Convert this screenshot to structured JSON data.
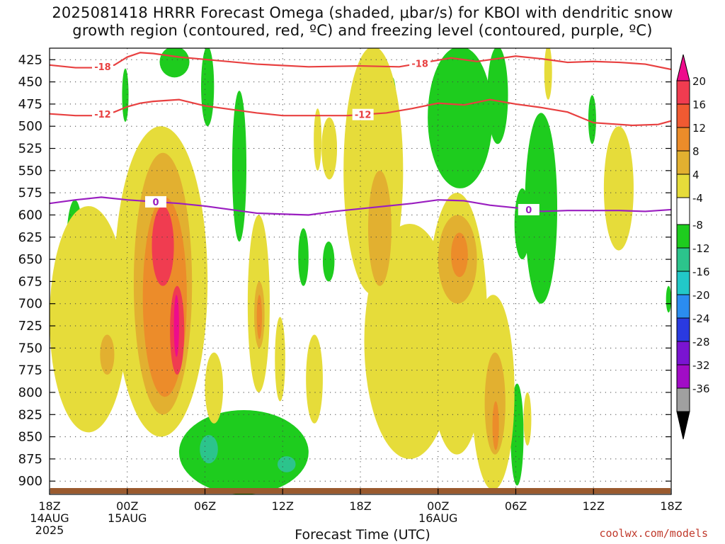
{
  "title": {
    "line1": "2025081418 HRRR Forecast Omega (shaded, μbar/s) for KBOI with dendritic snow",
    "line2": "growth region (contoured, red, ºC) and freezing level (contoured, purple, ºC)"
  },
  "credit": "coolwx.com/models",
  "xlabel": "Forecast Time (UTC)",
  "chart_data": {
    "type": "heatmap",
    "title": "2025081418 HRRR Forecast Omega (shaded, μbar/s) for KBOI with dendritic snow growth region (contoured, red, ºC) and freezing level (contoured, purple, ºC)",
    "xlabel": "Forecast Time (UTC)",
    "ylabel": "",
    "x_range_hours": [
      0,
      48
    ],
    "y_range_hpa": [
      412,
      915
    ],
    "y_ticks": [
      425,
      450,
      475,
      500,
      525,
      550,
      575,
      600,
      625,
      650,
      675,
      700,
      725,
      750,
      775,
      800,
      825,
      850,
      875,
      900
    ],
    "x_ticks": [
      {
        "hour": 0,
        "lines": [
          "18Z",
          "14AUG",
          "2025"
        ]
      },
      {
        "hour": 6,
        "lines": [
          "00Z",
          "15AUG"
        ]
      },
      {
        "hour": 12,
        "lines": [
          "06Z"
        ]
      },
      {
        "hour": 18,
        "lines": [
          "12Z"
        ]
      },
      {
        "hour": 24,
        "lines": [
          "18Z"
        ]
      },
      {
        "hour": 30,
        "lines": [
          "00Z",
          "16AUG"
        ]
      },
      {
        "hour": 36,
        "lines": [
          "06Z"
        ]
      },
      {
        "hour": 42,
        "lines": [
          "12Z"
        ]
      },
      {
        "hour": 48,
        "lines": [
          "18Z"
        ]
      }
    ],
    "grid": true,
    "colorbar": {
      "labels": [
        "20",
        "16",
        "12",
        "8",
        "4",
        "-4",
        "-8",
        "-12",
        "-16",
        "-20",
        "-24",
        "-28",
        "-32",
        "-36"
      ],
      "bins": [
        {
          "range": [
            16,
            20
          ],
          "color": "#f03c50"
        },
        {
          "range": [
            12,
            16
          ],
          "color": "#f05a32"
        },
        {
          "range": [
            8,
            12
          ],
          "color": "#ec8c2a"
        },
        {
          "range": [
            4,
            8
          ],
          "color": "#e2b030"
        },
        {
          "range": [
            0,
            4
          ],
          "color": "#e6dc3a"
        },
        {
          "range": [
            -4,
            4
          ],
          "color": "#ffffff"
        },
        {
          "range": [
            -8,
            -4
          ],
          "color": "#1ecc1e"
        },
        {
          "range": [
            -12,
            -8
          ],
          "color": "#2cc48c"
        },
        {
          "range": [
            -16,
            -12
          ],
          "color": "#22c8c8"
        },
        {
          "range": [
            -20,
            -16
          ],
          "color": "#2b8cf0"
        },
        {
          "range": [
            -24,
            -20
          ],
          "color": "#2a3ae0"
        },
        {
          "range": [
            -28,
            -24
          ],
          "color": "#7a14d2"
        },
        {
          "range": [
            -32,
            -28
          ],
          "color": "#a10cc6"
        },
        {
          "range": [
            -36,
            -32
          ],
          "color": "#a0a0a0"
        }
      ],
      "top_cap_color": "#ee0c8c",
      "bottom_cap_color": "#000000"
    },
    "contours": {
      "dendritic_minus18": {
        "label": "-18",
        "color": "#e84040",
        "points": [
          [
            0,
            431
          ],
          [
            2,
            434
          ],
          [
            3.3,
            434
          ],
          [
            5,
            431
          ],
          [
            6,
            422
          ],
          [
            7,
            417
          ],
          [
            8,
            418
          ],
          [
            10,
            422
          ],
          [
            13,
            426
          ],
          [
            16,
            430
          ],
          [
            20,
            433
          ],
          [
            24,
            432
          ],
          [
            27,
            433
          ],
          [
            29,
            428
          ],
          [
            31,
            423
          ],
          [
            33,
            427
          ],
          [
            36,
            421
          ],
          [
            38,
            424
          ],
          [
            40,
            428
          ],
          [
            42,
            427
          ],
          [
            44,
            428
          ],
          [
            46,
            430
          ],
          [
            48,
            436
          ]
        ]
      },
      "dendritic_minus12": {
        "label": "-12",
        "color": "#e84040",
        "points": [
          [
            0,
            486
          ],
          [
            2,
            488
          ],
          [
            3.3,
            488
          ],
          [
            5,
            484
          ],
          [
            6,
            478
          ],
          [
            7,
            474
          ],
          [
            8,
            472
          ],
          [
            10,
            470
          ],
          [
            12,
            477
          ],
          [
            14,
            481
          ],
          [
            16,
            485
          ],
          [
            18,
            488
          ],
          [
            21,
            488
          ],
          [
            23,
            488
          ],
          [
            26,
            485
          ],
          [
            28,
            480
          ],
          [
            30,
            474
          ],
          [
            32,
            476
          ],
          [
            34,
            470
          ],
          [
            36,
            475
          ],
          [
            38,
            479
          ],
          [
            40,
            484
          ],
          [
            42,
            496
          ],
          [
            45,
            499
          ],
          [
            47,
            498
          ],
          [
            48,
            494
          ]
        ]
      },
      "freezing_level": {
        "label": "0",
        "color": "#9a1ec0",
        "points": [
          [
            0,
            587
          ],
          [
            2,
            583
          ],
          [
            4,
            580
          ],
          [
            6,
            583
          ],
          [
            8,
            585
          ],
          [
            10,
            587
          ],
          [
            12,
            590
          ],
          [
            14,
            594
          ],
          [
            16,
            598
          ],
          [
            18,
            599
          ],
          [
            20,
            600
          ],
          [
            22,
            596
          ],
          [
            24,
            593
          ],
          [
            26,
            590
          ],
          [
            28,
            587
          ],
          [
            30,
            583
          ],
          [
            32,
            584
          ],
          [
            34,
            589
          ],
          [
            36,
            592
          ],
          [
            38,
            596
          ],
          [
            40,
            595
          ],
          [
            42,
            595
          ],
          [
            44,
            595
          ],
          [
            46,
            596
          ],
          [
            48,
            594
          ]
        ]
      }
    },
    "surface_color": "#9a5a2e",
    "omega_regions": [
      {
        "x0": 1.3,
        "x1": 2.6,
        "y0": 583,
        "y1": 687,
        "value": -6,
        "color": "#1ecc1e"
      },
      {
        "x0": 5.6,
        "x1": 6.1,
        "y0": 435,
        "y1": 495,
        "value": -6,
        "color": "#1ecc1e"
      },
      {
        "x0": 8.5,
        "x1": 10.8,
        "y0": 410,
        "y1": 445,
        "value": -6,
        "color": "#1ecc1e"
      },
      {
        "x0": 11.7,
        "x1": 12.7,
        "y0": 410,
        "y1": 500,
        "value": -6,
        "color": "#1ecc1e"
      },
      {
        "x0": 14.1,
        "x1": 15.2,
        "y0": 460,
        "y1": 630,
        "value": -6,
        "color": "#1ecc1e"
      },
      {
        "x0": 19.2,
        "x1": 20.0,
        "y0": 615,
        "y1": 680,
        "value": -6,
        "color": "#1ecc1e"
      },
      {
        "x0": 21.1,
        "x1": 22.0,
        "y0": 630,
        "y1": 675,
        "value": -6,
        "color": "#1ecc1e"
      },
      {
        "x0": 26.1,
        "x1": 26.9,
        "y0": 445,
        "y1": 590,
        "value": -6,
        "color": "#1ecc1e"
      },
      {
        "x0": 29.2,
        "x1": 34.2,
        "y0": 410,
        "y1": 570,
        "value": -6,
        "color": "#1ecc1e"
      },
      {
        "x0": 33.8,
        "x1": 35.4,
        "y0": 410,
        "y1": 520,
        "value": -6,
        "color": "#1ecc1e"
      },
      {
        "x0": 35.9,
        "x1": 37.1,
        "y0": 570,
        "y1": 650,
        "value": -6,
        "color": "#1ecc1e"
      },
      {
        "x0": 36.7,
        "x1": 39.2,
        "y0": 485,
        "y1": 700,
        "value": -6,
        "color": "#1ecc1e"
      },
      {
        "x0": 41.6,
        "x1": 42.2,
        "y0": 465,
        "y1": 520,
        "value": -6,
        "color": "#1ecc1e"
      },
      {
        "x0": 47.6,
        "x1": 48.0,
        "y0": 680,
        "y1": 710,
        "value": -6,
        "color": "#1ecc1e"
      },
      {
        "x0": 35.6,
        "x1": 36.6,
        "y0": 790,
        "y1": 905,
        "value": -6,
        "color": "#1ecc1e"
      },
      {
        "x0": 10.0,
        "x1": 20.0,
        "y0": 820,
        "y1": 915,
        "value": -6,
        "color": "#1ecc1e"
      },
      {
        "x0": 11.6,
        "x1": 13.0,
        "y0": 848,
        "y1": 880,
        "value": -10,
        "color": "#2cc48c"
      },
      {
        "x0": 17.6,
        "x1": 19.0,
        "y0": 872,
        "y1": 890,
        "value": -10,
        "color": "#2cc48c"
      },
      {
        "x0": 21.0,
        "x1": 22.2,
        "y0": 490,
        "y1": 560,
        "value": 2,
        "color": "#e6dc3a"
      },
      {
        "x0": 22.7,
        "x1": 27.3,
        "y0": 410,
        "y1": 690,
        "value": 2,
        "color": "#e6dc3a"
      },
      {
        "x0": 24.3,
        "x1": 31.3,
        "y0": 610,
        "y1": 875,
        "value": 2,
        "color": "#e6dc3a"
      },
      {
        "x0": 29.1,
        "x1": 33.8,
        "y0": 575,
        "y1": 870,
        "value": 2,
        "color": "#e6dc3a"
      },
      {
        "x0": 32.6,
        "x1": 35.9,
        "y0": 690,
        "y1": 910,
        "value": 2,
        "color": "#e6dc3a"
      },
      {
        "x0": 36.6,
        "x1": 37.2,
        "y0": 800,
        "y1": 860,
        "value": 2,
        "color": "#e6dc3a"
      },
      {
        "x0": 42.8,
        "x1": 45.1,
        "y0": 500,
        "y1": 640,
        "value": 2,
        "color": "#e6dc3a"
      },
      {
        "x0": 15.3,
        "x1": 17.0,
        "y0": 600,
        "y1": 800,
        "value": 2,
        "color": "#e6dc3a"
      },
      {
        "x0": 17.4,
        "x1": 18.2,
        "y0": 715,
        "y1": 810,
        "value": 2,
        "color": "#e6dc3a"
      },
      {
        "x0": 19.8,
        "x1": 21.1,
        "y0": 735,
        "y1": 835,
        "value": 2,
        "color": "#e6dc3a"
      },
      {
        "x0": 20.4,
        "x1": 21.0,
        "y0": 480,
        "y1": 550,
        "value": 2,
        "color": "#e6dc3a"
      },
      {
        "x0": 38.2,
        "x1": 38.8,
        "y0": 408,
        "y1": 470,
        "value": 2,
        "color": "#e6dc3a"
      },
      {
        "x0": 0.0,
        "x1": 6.0,
        "y0": 590,
        "y1": 845,
        "value": 2,
        "color": "#e6dc3a"
      },
      {
        "x0": 5.0,
        "x1": 12.2,
        "y0": 500,
        "y1": 850,
        "value": 2,
        "color": "#e6dc3a"
      },
      {
        "x0": 12.0,
        "x1": 13.4,
        "y0": 755,
        "y1": 835,
        "value": 2,
        "color": "#e6dc3a"
      },
      {
        "x0": 24.6,
        "x1": 26.4,
        "y0": 550,
        "y1": 680,
        "value": 6,
        "color": "#e2b030"
      },
      {
        "x0": 30.0,
        "x1": 33.0,
        "y0": 600,
        "y1": 700,
        "value": 6,
        "color": "#e2b030"
      },
      {
        "x0": 33.6,
        "x1": 35.2,
        "y0": 755,
        "y1": 870,
        "value": 6,
        "color": "#e2b030"
      },
      {
        "x0": 15.8,
        "x1": 16.6,
        "y0": 675,
        "y1": 750,
        "value": 6,
        "color": "#e2b030"
      },
      {
        "x0": 3.9,
        "x1": 5.0,
        "y0": 735,
        "y1": 780,
        "value": 6,
        "color": "#e2b030"
      },
      {
        "x0": 6.5,
        "x1": 11.0,
        "y0": 530,
        "y1": 825,
        "value": 6,
        "color": "#e2b030"
      },
      {
        "x0": 7.2,
        "x1": 10.6,
        "y0": 580,
        "y1": 805,
        "value": 10,
        "color": "#ec8c2a"
      },
      {
        "x0": 31.0,
        "x1": 32.3,
        "y0": 620,
        "y1": 670,
        "value": 10,
        "color": "#ec8c2a"
      },
      {
        "x0": 16.0,
        "x1": 16.4,
        "y0": 690,
        "y1": 740,
        "value": 10,
        "color": "#ec8c2a"
      },
      {
        "x0": 34.2,
        "x1": 34.7,
        "y0": 810,
        "y1": 865,
        "value": 10,
        "color": "#ec8c2a"
      },
      {
        "x0": 7.9,
        "x1": 9.6,
        "y0": 590,
        "y1": 680,
        "value": 16,
        "color": "#f03c50"
      },
      {
        "x0": 9.3,
        "x1": 10.4,
        "y0": 680,
        "y1": 780,
        "value": 16,
        "color": "#f03c50"
      },
      {
        "x0": 9.6,
        "x1": 10.0,
        "y0": 690,
        "y1": 760,
        "value": 20,
        "color": "#ee0c8c"
      }
    ]
  }
}
